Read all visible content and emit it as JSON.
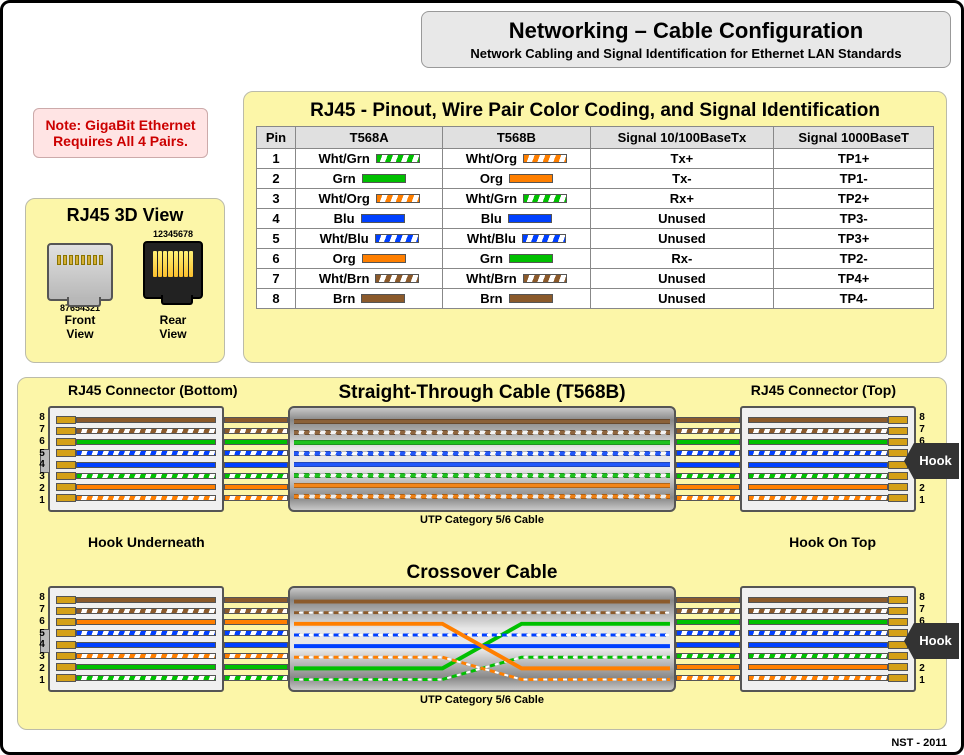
{
  "colors": {
    "green": "#00c000",
    "orange": "#ff7f00",
    "blue": "#0040ff",
    "brown": "#8b5a2b",
    "white": "#ffffff",
    "stripe_bg": "#ffffff",
    "gold": "#d4a017",
    "panel_yellow": "#fcf6a8",
    "panel_grey": "#e8e8e8",
    "note_bg": "#ffe4e4",
    "note_text": "#cc0000",
    "border": "#555555"
  },
  "header": {
    "title": "Networking – Cable Configuration",
    "subtitle": "Network Cabling and Signal Identification for Ethernet LAN Standards"
  },
  "note": {
    "line1": "Note: GigaBit Ethernet",
    "line2": "Requires All 4 Pairs."
  },
  "view3d": {
    "title": "RJ45 3D View",
    "front_pins": "87654321",
    "rear_pins": "12345678",
    "front_label1": "Front",
    "front_label2": "View",
    "rear_label1": "Rear",
    "rear_label2": "View"
  },
  "table": {
    "title": "RJ45 -  Pinout, Wire Pair Color Coding, and Signal Identification",
    "columns": [
      "Pin",
      "T568A",
      "T568B",
      "Signal 10/100BaseTx",
      "Signal 1000BaseT"
    ],
    "rows": [
      {
        "pin": "1",
        "a_label": "Wht/Grn",
        "a_stripe": "green",
        "b_label": "Wht/Org",
        "b_stripe": "orange",
        "sig100": "Tx+",
        "sig1000": "TP1+"
      },
      {
        "pin": "2",
        "a_label": "Grn",
        "a_solid": "green",
        "b_label": "Org",
        "b_solid": "orange",
        "sig100": "Tx-",
        "sig1000": "TP1-"
      },
      {
        "pin": "3",
        "a_label": "Wht/Org",
        "a_stripe": "orange",
        "b_label": "Wht/Grn",
        "b_stripe": "green",
        "sig100": "Rx+",
        "sig1000": "TP2+"
      },
      {
        "pin": "4",
        "a_label": "Blu",
        "a_solid": "blue",
        "b_label": "Blu",
        "b_solid": "blue",
        "sig100": "Unused",
        "sig1000": "TP3-"
      },
      {
        "pin": "5",
        "a_label": "Wht/Blu",
        "a_stripe": "blue",
        "b_label": "Wht/Blu",
        "b_stripe": "blue",
        "sig100": "Unused",
        "sig1000": "TP3+"
      },
      {
        "pin": "6",
        "a_label": "Org",
        "a_solid": "orange",
        "b_label": "Grn",
        "b_solid": "green",
        "sig100": "Rx-",
        "sig1000": "TP2-"
      },
      {
        "pin": "7",
        "a_label": "Wht/Brn",
        "a_stripe": "brown",
        "b_label": "Wht/Brn",
        "b_stripe": "brown",
        "sig100": "Unused",
        "sig1000": "TP4+"
      },
      {
        "pin": "8",
        "a_label": "Brn",
        "a_solid": "brown",
        "b_label": "Brn",
        "b_solid": "brown",
        "sig100": "Unused",
        "sig1000": "TP4-"
      }
    ]
  },
  "t568b_order_top_to_bottom": [
    {
      "pin": "8",
      "type": "solid",
      "color": "brown"
    },
    {
      "pin": "7",
      "type": "stripe",
      "color": "brown"
    },
    {
      "pin": "6",
      "type": "solid",
      "color": "green"
    },
    {
      "pin": "5",
      "type": "stripe",
      "color": "blue"
    },
    {
      "pin": "4",
      "type": "solid",
      "color": "blue"
    },
    {
      "pin": "3",
      "type": "stripe",
      "color": "green"
    },
    {
      "pin": "2",
      "type": "solid",
      "color": "orange"
    },
    {
      "pin": "1",
      "type": "stripe",
      "color": "orange"
    }
  ],
  "t568a_order_top_to_bottom": [
    {
      "pin": "8",
      "type": "solid",
      "color": "brown"
    },
    {
      "pin": "7",
      "type": "stripe",
      "color": "brown"
    },
    {
      "pin": "6",
      "type": "solid",
      "color": "orange"
    },
    {
      "pin": "5",
      "type": "stripe",
      "color": "blue"
    },
    {
      "pin": "4",
      "type": "solid",
      "color": "blue"
    },
    {
      "pin": "3",
      "type": "stripe",
      "color": "orange"
    },
    {
      "pin": "2",
      "type": "solid",
      "color": "green"
    },
    {
      "pin": "1",
      "type": "stripe",
      "color": "green"
    }
  ],
  "crossover_map_left_to_right": {
    "1": "3",
    "2": "6",
    "3": "1",
    "4": "4",
    "5": "5",
    "6": "2",
    "7": "7",
    "8": "8"
  },
  "straight": {
    "title": "Straight-Through Cable (T568B)",
    "left_label": "RJ45 Connector (Bottom)",
    "right_label": "RJ45 Connector (Top)",
    "cable_label": "UTP Category 5/6 Cable",
    "hook_text": "Hook",
    "hook_under": "Hook Underneath",
    "hook_top": "Hook On Top"
  },
  "crossover": {
    "title": "Crossover Cable",
    "cable_label": "UTP Category 5/6 Cable",
    "hook_text": "Hook"
  },
  "footer": "NST - 2011"
}
